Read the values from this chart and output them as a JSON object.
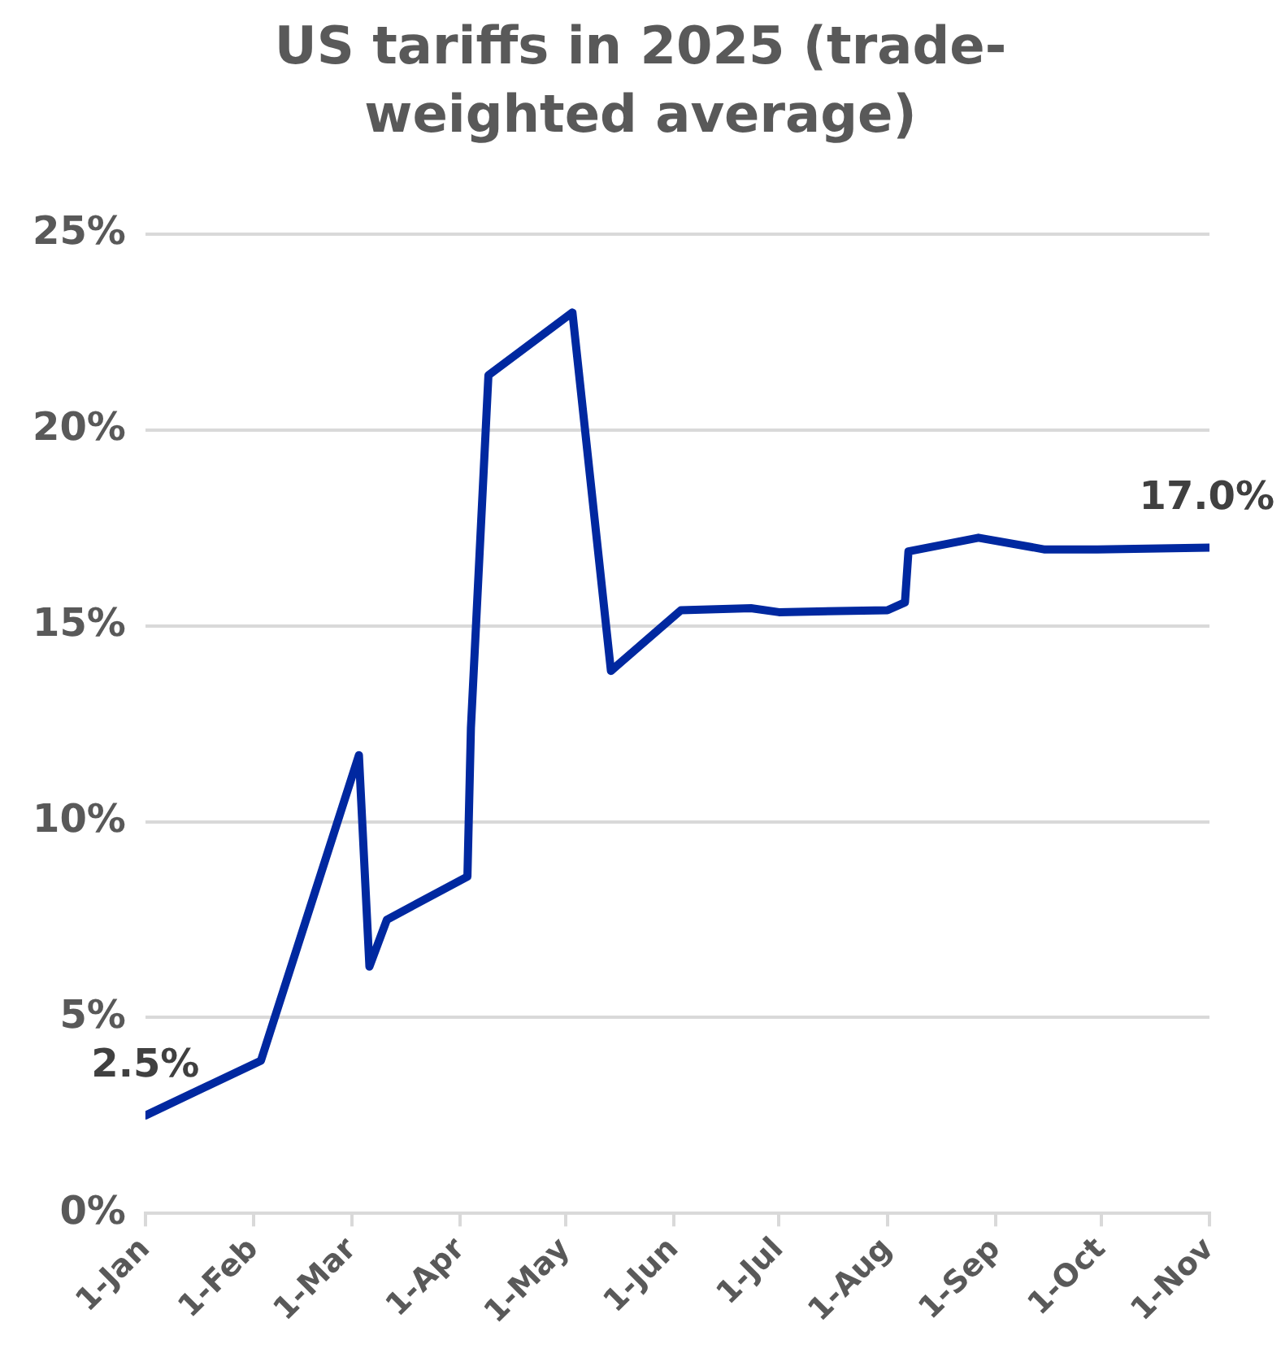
{
  "chart_data": {
    "type": "line",
    "title": "US tariffs in 2025 (trade-weighted average)",
    "x": [
      "--01-01",
      "--02-03",
      "--03-03",
      "--03-06",
      "--03-11",
      "--04-03",
      "--04-04",
      "--04-09",
      "--05-03",
      "--05-14",
      "--06-03",
      "--06-23",
      "--07-01",
      "--08-01",
      "--08-06",
      "--08-07",
      "--08-27",
      "--09-15",
      "--09-30",
      "--11-01"
    ],
    "series": [
      {
        "color": "#0028a0",
        "values": [
          2.5,
          3.9,
          11.7,
          6.3,
          7.5,
          8.6,
          12.4,
          21.4,
          23.0,
          13.85,
          15.4,
          15.45,
          15.35,
          15.4,
          15.6,
          16.9,
          17.25,
          16.95,
          16.95,
          17.0
        ]
      }
    ],
    "xlim": [
      "--01-01",
      "--11-01"
    ],
    "xticks": [
      {
        "value": "--01-01",
        "label": "1-Jan"
      },
      {
        "value": "--02-01",
        "label": "1-Feb"
      },
      {
        "value": "--03-01",
        "label": "1-Mar"
      },
      {
        "value": "--04-01",
        "label": "1-Apr"
      },
      {
        "value": "--05-01",
        "label": "1-May"
      },
      {
        "value": "--06-01",
        "label": "1-Jun"
      },
      {
        "value": "--07-01",
        "label": "1-Jul"
      },
      {
        "value": "--08-01",
        "label": "1-Aug"
      },
      {
        "value": "--09-01",
        "label": "1-Sep"
      },
      {
        "value": "--10-01",
        "label": "1-Oct"
      },
      {
        "value": "--11-01",
        "label": "1-Nov"
      }
    ],
    "ylim": [
      0,
      25
    ],
    "yticks": [
      {
        "value": 0,
        "label": "0%"
      },
      {
        "value": 5,
        "label": "5%"
      },
      {
        "value": 10,
        "label": "10%"
      },
      {
        "value": 15,
        "label": "15%"
      },
      {
        "value": 20,
        "label": "20%"
      },
      {
        "value": 25,
        "label": "25%"
      }
    ],
    "grid": "y",
    "legend": false,
    "line_style": "solid",
    "annotations": [
      {
        "text": "2.5%",
        "x": "--01-01",
        "y": 2.5
      },
      {
        "text": "17.0%",
        "x": "--11-01",
        "y": 17.0
      }
    ]
  }
}
